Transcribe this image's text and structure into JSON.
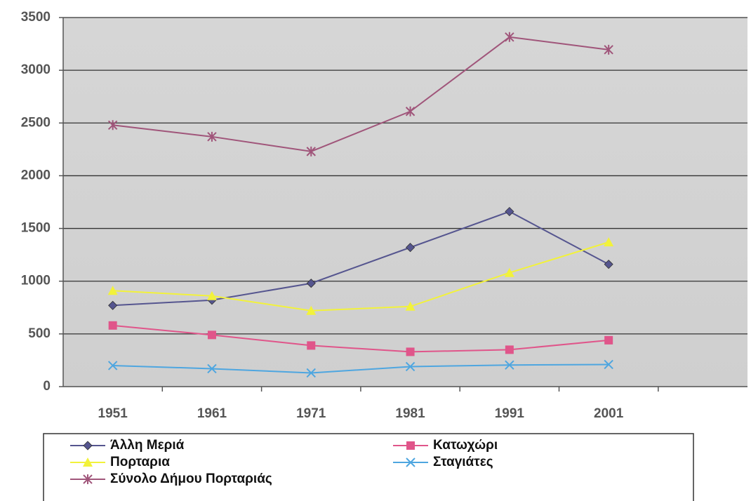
{
  "chart_data": {
    "type": "line",
    "categories": [
      "1951",
      "1961",
      "1971",
      "1981",
      "1991",
      "2001"
    ],
    "series": [
      {
        "name": "Άλλη Μεριά",
        "color": "#55558f",
        "marker": "diamond",
        "values": [
          770,
          820,
          980,
          1320,
          1660,
          1160
        ]
      },
      {
        "name": "Κατωχώρι",
        "color": "#e0558a",
        "marker": "square",
        "values": [
          580,
          490,
          390,
          330,
          350,
          440
        ]
      },
      {
        "name": "Πορταρια",
        "color": "#f2f23a",
        "marker": "triangle",
        "values": [
          910,
          860,
          720,
          760,
          1080,
          1370
        ]
      },
      {
        "name": "Σταγιάτες",
        "color": "#4ea6e0",
        "marker": "x",
        "values": [
          200,
          170,
          130,
          190,
          205,
          210
        ]
      },
      {
        "name": "Σύνολο Δήμου Πορταριάς",
        "color": "#a0557a",
        "marker": "star",
        "values": [
          2480,
          2370,
          2230,
          2610,
          3315,
          3195
        ]
      }
    ],
    "ylim": [
      0,
      3500
    ],
    "yticks": [
      0,
      500,
      1000,
      1500,
      2000,
      2500,
      3000,
      3500
    ],
    "grid": true
  }
}
